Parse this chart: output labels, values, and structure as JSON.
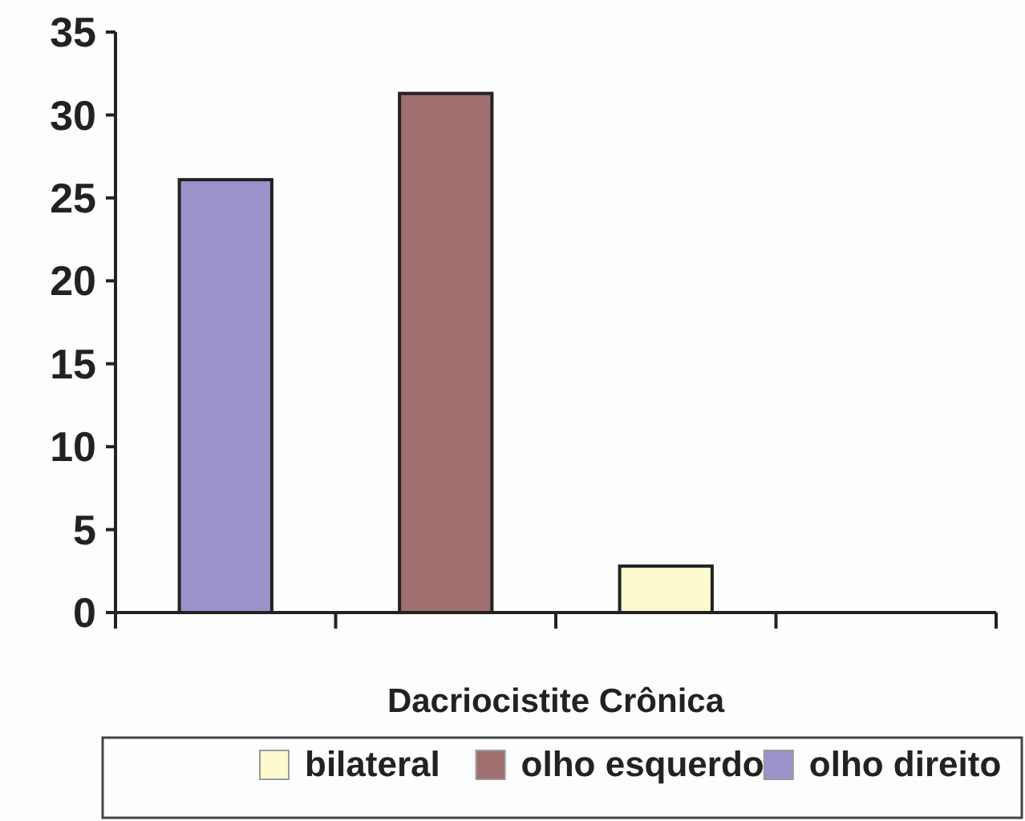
{
  "chart_data": {
    "type": "bar",
    "xlabel": "Dacriocistite Crônica",
    "categories": [
      null,
      null,
      null,
      null
    ],
    "series": [
      {
        "name": "bilateral",
        "color": "#fdf9cf",
        "values": [
          null,
          null,
          2.8,
          null
        ]
      },
      {
        "name": "olho esquerdo",
        "color": "#a07070",
        "values": [
          null,
          31.3,
          null,
          null
        ]
      },
      {
        "name": "olho direito",
        "color": "#9a93c9",
        "values": [
          26.1,
          null,
          null,
          null
        ]
      }
    ],
    "ylim": [
      0,
      35
    ],
    "yticks": [
      0,
      5,
      10,
      15,
      20,
      25,
      30,
      35
    ],
    "legend": "bottom",
    "grid": false
  }
}
